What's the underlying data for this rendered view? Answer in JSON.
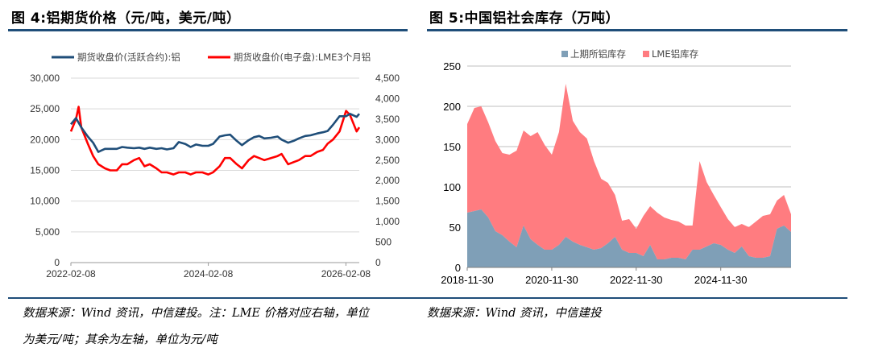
{
  "left": {
    "title": "图 4:铝期货价格（元/吨，美元/吨）",
    "source_line1": "数据来源：Wind 资讯，中信建投。注：LME 价格对应右轴，单位",
    "source_line2": "为美元/吨；其余为左轴，单位为元/吨",
    "chart_data": {
      "type": "line",
      "title": "",
      "xlabel": "",
      "ylabel": "",
      "x_ticks": [
        "2022-02-08",
        "2024-02-08",
        "2026-02-08"
      ],
      "y_left_ticks": [
        "0",
        "5,000",
        "10,000",
        "15,000",
        "20,000",
        "25,000",
        "30,000"
      ],
      "y_right_ticks": [
        "0",
        "500",
        "1,000",
        "1,500",
        "2,000",
        "2,500",
        "3,000",
        "3,500",
        "4,000",
        "4,500"
      ],
      "ylim_left": [
        0,
        30000
      ],
      "ylim_right": [
        0,
        4500
      ],
      "xlim": [
        "2022-02-08",
        "2026-04-20"
      ],
      "legend_position": "top",
      "series": [
        {
          "name": "期货收盘价(活跃合约):铝",
          "axis": "left",
          "color": "#1f4e79",
          "x": [
            "2022-02-08",
            "2022-03-07",
            "2022-04-04",
            "2022-05-09",
            "2022-06-06",
            "2022-07-04",
            "2022-08-08",
            "2022-09-05",
            "2022-10-10",
            "2022-11-07",
            "2022-12-05",
            "2023-01-09",
            "2023-02-06",
            "2023-03-06",
            "2023-04-03",
            "2023-05-08",
            "2023-06-05",
            "2023-07-03",
            "2023-08-07",
            "2023-09-04",
            "2023-10-09",
            "2023-11-06",
            "2023-12-04",
            "2024-01-08",
            "2024-02-08",
            "2024-03-04",
            "2024-04-08",
            "2024-05-06",
            "2024-06-03",
            "2024-07-08",
            "2024-08-05",
            "2024-09-09",
            "2024-10-08",
            "2024-11-04",
            "2024-12-02",
            "2025-01-06",
            "2025-02-10",
            "2025-03-03",
            "2025-04-07",
            "2025-05-06",
            "2025-06-03",
            "2025-07-07",
            "2025-08-04",
            "2025-09-08",
            "2025-10-09",
            "2025-11-03",
            "2025-12-01",
            "2026-01-05",
            "2026-02-09",
            "2026-03-02",
            "2026-04-06",
            "2026-04-20"
          ],
          "values": [
            22500,
            23500,
            22000,
            20500,
            19500,
            18000,
            18500,
            18500,
            18500,
            18800,
            18700,
            18600,
            18700,
            18500,
            18700,
            18500,
            18600,
            18400,
            18600,
            19600,
            19300,
            18800,
            19200,
            19000,
            19000,
            19300,
            20500,
            20700,
            20800,
            19800,
            19100,
            19900,
            20400,
            20600,
            20200,
            20300,
            20500,
            20000,
            19500,
            19800,
            20200,
            20600,
            20700,
            21000,
            21200,
            21400,
            22400,
            23800,
            23800,
            24200,
            23700,
            24200
          ]
        },
        {
          "name": "期货收盘价(电子盘):LME3个月铝",
          "axis": "right",
          "color": "#ff0000",
          "x": [
            "2022-02-08",
            "2022-03-07",
            "2022-03-21",
            "2022-04-04",
            "2022-05-09",
            "2022-06-06",
            "2022-07-04",
            "2022-08-08",
            "2022-09-05",
            "2022-10-10",
            "2022-11-07",
            "2022-12-05",
            "2023-01-09",
            "2023-02-06",
            "2023-03-06",
            "2023-04-03",
            "2023-05-08",
            "2023-06-05",
            "2023-07-03",
            "2023-08-07",
            "2023-09-04",
            "2023-10-09",
            "2023-11-06",
            "2023-12-04",
            "2024-01-08",
            "2024-02-08",
            "2024-03-04",
            "2024-04-08",
            "2024-05-06",
            "2024-06-03",
            "2024-07-08",
            "2024-08-05",
            "2024-09-09",
            "2024-10-08",
            "2024-11-04",
            "2024-12-02",
            "2025-01-06",
            "2025-02-10",
            "2025-03-03",
            "2025-04-07",
            "2025-05-06",
            "2025-06-03",
            "2025-07-07",
            "2025-08-04",
            "2025-09-08",
            "2025-10-09",
            "2025-11-03",
            "2025-12-01",
            "2026-01-05",
            "2026-02-09",
            "2026-03-02",
            "2026-04-06",
            "2026-04-20"
          ],
          "values": [
            3200,
            3500,
            3800,
            3300,
            2900,
            2600,
            2400,
            2300,
            2250,
            2250,
            2400,
            2400,
            2500,
            2550,
            2350,
            2400,
            2300,
            2200,
            2200,
            2150,
            2200,
            2200,
            2150,
            2200,
            2200,
            2150,
            2200,
            2350,
            2550,
            2550,
            2400,
            2300,
            2500,
            2600,
            2550,
            2500,
            2550,
            2600,
            2650,
            2400,
            2450,
            2500,
            2600,
            2600,
            2700,
            2750,
            2900,
            3000,
            3200,
            3700,
            3600,
            3200,
            3300
          ]
        }
      ]
    }
  },
  "right": {
    "title": "图 5:中国铝社会库存（万吨）",
    "source": "数据来源：Wind 资讯，中信建投",
    "chart_data": {
      "type": "area",
      "title": "",
      "xlabel": "",
      "ylabel": "",
      "stacked": true,
      "x_ticks": [
        "2018-11-30",
        "2020-11-30",
        "2022-11-30",
        "2024-11-30"
      ],
      "y_ticks": [
        "0",
        "50",
        "100",
        "150",
        "200",
        "250"
      ],
      "ylim": [
        0,
        250
      ],
      "xlim": [
        "2018-11-30",
        "2026-07-31"
      ],
      "legend_position": "top",
      "series": [
        {
          "name": "上期所铝库存",
          "color": "#7f9fb7",
          "x": [
            "2018-11-30",
            "2019-01-31",
            "2019-03-31",
            "2019-05-31",
            "2019-07-31",
            "2019-09-30",
            "2019-11-30",
            "2020-01-31",
            "2020-03-31",
            "2020-05-31",
            "2020-07-31",
            "2020-09-30",
            "2020-11-30",
            "2021-01-31",
            "2021-03-31",
            "2021-05-31",
            "2021-07-31",
            "2021-09-30",
            "2021-11-30",
            "2022-01-31",
            "2022-03-31",
            "2022-05-31",
            "2022-07-31",
            "2022-09-30",
            "2022-11-30",
            "2023-01-31",
            "2023-03-31",
            "2023-05-31",
            "2023-07-31",
            "2023-09-30",
            "2023-11-30",
            "2024-01-31",
            "2024-03-31",
            "2024-05-31",
            "2024-07-31",
            "2024-09-30",
            "2024-11-30",
            "2025-01-31",
            "2025-03-31",
            "2025-05-31",
            "2025-07-31",
            "2025-09-30",
            "2025-11-30",
            "2026-01-31",
            "2026-03-31",
            "2026-05-31",
            "2026-07-31"
          ],
          "values": [
            68,
            70,
            72,
            62,
            45,
            40,
            32,
            25,
            52,
            35,
            28,
            22,
            22,
            28,
            38,
            32,
            28,
            25,
            22,
            24,
            30,
            38,
            22,
            18,
            18,
            14,
            28,
            10,
            10,
            12,
            12,
            10,
            22,
            22,
            26,
            30,
            28,
            22,
            18,
            26,
            14,
            12,
            12,
            14,
            48,
            52,
            44
          ]
        },
        {
          "name": "LME铝库存",
          "color": "#ff7c80",
          "x": [
            "2018-11-30",
            "2019-01-31",
            "2019-03-31",
            "2019-05-31",
            "2019-07-31",
            "2019-09-30",
            "2019-11-30",
            "2020-01-31",
            "2020-03-31",
            "2020-05-31",
            "2020-07-31",
            "2020-09-30",
            "2020-11-30",
            "2021-01-31",
            "2021-03-31",
            "2021-05-31",
            "2021-07-31",
            "2021-09-30",
            "2021-11-30",
            "2022-01-31",
            "2022-03-31",
            "2022-05-31",
            "2022-07-31",
            "2022-09-30",
            "2022-11-30",
            "2023-01-31",
            "2023-03-31",
            "2023-05-31",
            "2023-07-31",
            "2023-09-30",
            "2023-11-30",
            "2024-01-31",
            "2024-03-31",
            "2024-05-31",
            "2024-07-31",
            "2024-09-30",
            "2024-11-30",
            "2025-01-31",
            "2025-03-31",
            "2025-05-31",
            "2025-07-31",
            "2025-09-30",
            "2025-11-30",
            "2026-01-31",
            "2026-03-31",
            "2026-05-31",
            "2026-07-31"
          ],
          "values": [
            110,
            128,
            128,
            118,
            112,
            102,
            108,
            120,
            118,
            128,
            140,
            130,
            118,
            140,
            190,
            150,
            140,
            135,
            110,
            86,
            75,
            52,
            36,
            42,
            30,
            50,
            48,
            58,
            52,
            47,
            45,
            42,
            30,
            110,
            80,
            60,
            47,
            38,
            32,
            28,
            36,
            45,
            52,
            52,
            35,
            38,
            22
          ]
        }
      ]
    }
  }
}
